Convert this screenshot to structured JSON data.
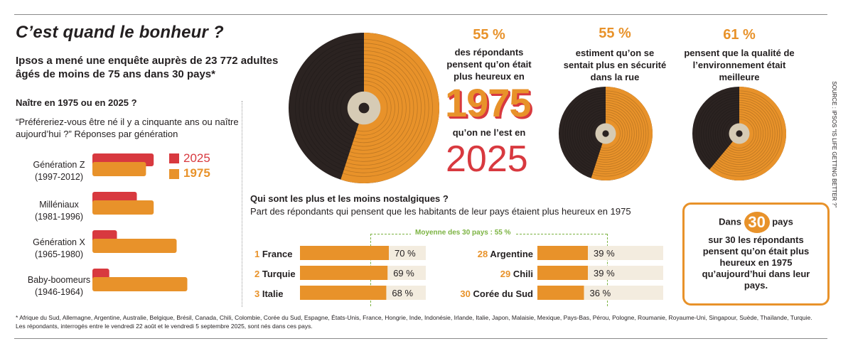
{
  "title": "C’est quand le bonheur ?",
  "intro": "Ipsos a mené une enquête auprès de 23 772 adultes âgés de moins de 75 ans dans 30 pays*",
  "section1": {
    "title": "Naître en 1975 ou en 2025 ?",
    "question": "“Préféreriez-vous être né il y a cinquante ans ou naître aujourd’hui ?” Réponses par génération",
    "generations": [
      {
        "name": "Génération Z",
        "years": "(1997-2012)"
      },
      {
        "name": "Milléniaux",
        "years": "(1981-1996)"
      },
      {
        "name": "Génération X",
        "years": "(1965-1980)"
      },
      {
        "name": "Baby-boomeurs",
        "years": "(1946-1964)"
      }
    ],
    "legend": {
      "a": "2025",
      "b": "1975"
    }
  },
  "stats": {
    "main": {
      "pct": "55 %",
      "text1": "des répondants pensent qu’on était plus heureux en",
      "year1": "1975",
      "text2": "qu’on ne l’est en",
      "year2": "2025"
    },
    "safety": {
      "pct": "55 %",
      "text": "estiment qu’on se sentait plus en sécurité dans la rue"
    },
    "env": {
      "pct": "61 %",
      "text": "pensent que la qualité de l’environnement était meilleure"
    }
  },
  "section2": {
    "title": "Qui sont les plus et les moins nostalgiques ?",
    "subtitle": "Part des répondants qui pensent que les habitants de leur pays étaient plus heureux en 1975",
    "avg_label": "Moyenne des 30 pays : 55 %",
    "top": [
      {
        "rank": "1",
        "country": "France",
        "pct_label": "70 %"
      },
      {
        "rank": "2",
        "country": "Turquie",
        "pct_label": "69 %"
      },
      {
        "rank": "3",
        "country": "Italie",
        "pct_label": "68 %"
      }
    ],
    "bottom": [
      {
        "rank": "28",
        "country": "Argentine",
        "pct_label": "39 %"
      },
      {
        "rank": "29",
        "country": "Chili",
        "pct_label": "39 %"
      },
      {
        "rank": "30",
        "country": "Corée du Sud",
        "pct_label": "36 %"
      }
    ]
  },
  "box": {
    "line1": "Dans",
    "num": "30",
    "line1b": "pays",
    "rest": "sur 30 les répondants pensent qu’on était plus heureux en 1975 qu’aujourd’hui dans leur pays."
  },
  "footnote": "* Afrique du Sud, Allemagne, Argentine, Australie, Belgique, Brésil, Canada, Chili, Colombie, Corée du Sud, Espagne, États-Unis, France, Hongrie, Inde, Indonésie, Irlande, Italie, Japon, Malaisie, Mexique, Pays-Bas, Pérou, Pologne, Roumanie, Royaume-Uni, Singapour, Suède, Thaïlande, Turquie. Les répondants, interrogés entre le vendredi 22 août et le vendredi 5 septembre 2025, sont nés dans ces pays.",
  "source": "SOURCE : IPSOS “IS LIFE GETTING BETTER ?”",
  "colors": {
    "orange": "#e8922a",
    "red": "#d8393f",
    "dark": "#2b2321",
    "green": "#7cb342",
    "cream": "#f3ecdf"
  },
  "chart_data": [
    {
      "type": "bar",
      "title": "Naître en 1975 ou en 2025 ?",
      "categories": [
        "Génération Z",
        "Milléniaux",
        "Génération X",
        "Baby-boomeurs"
      ],
      "series": [
        {
          "name": "2025",
          "values": [
            40,
            29,
            16,
            11
          ]
        },
        {
          "name": "1975",
          "values": [
            35,
            40,
            55,
            62
          ]
        }
      ],
      "xlim": [
        0,
        65
      ]
    },
    {
      "type": "bar",
      "title": "Qui sont les plus et les moins nostalgiques ?",
      "categories": [
        "France",
        "Turquie",
        "Italie",
        "Argentine",
        "Chili",
        "Corée du Sud"
      ],
      "values": [
        70,
        69,
        68,
        39,
        39,
        36
      ],
      "reference": 55,
      "xlim": [
        0,
        100
      ]
    },
    {
      "type": "pie",
      "title": "Vinyles",
      "series": [
        {
          "name": "plus heureux en 1975",
          "values": [
            55,
            45
          ]
        },
        {
          "name": "plus en sécurité dans la rue",
          "values": [
            55,
            45
          ]
        },
        {
          "name": "environnement meilleur",
          "values": [
            61,
            39
          ]
        }
      ]
    }
  ]
}
